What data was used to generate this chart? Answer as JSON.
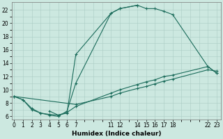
{
  "xlabel": "Humidex (Indice chaleur)",
  "bg_color": "#cce8e0",
  "line_color": "#1a6b5a",
  "grid_color": "#aaccc4",
  "xlim": [
    -0.3,
    23.5
  ],
  "ylim": [
    5.5,
    23.2
  ],
  "xtick_positions": [
    0,
    1,
    2,
    3,
    4,
    5,
    6,
    7,
    11,
    12,
    14,
    15,
    16,
    17,
    18,
    22,
    23
  ],
  "xtick_labels": [
    "0",
    "1",
    "2",
    "3",
    "4",
    "5",
    "6",
    "7",
    "11",
    "12",
    "14",
    "15",
    "16",
    "17",
    "18",
    "22",
    "23"
  ],
  "ytick_positions": [
    6,
    8,
    10,
    12,
    14,
    16,
    18,
    20,
    22
  ],
  "ytick_labels": [
    "6",
    "8",
    "10",
    "12",
    "14",
    "16",
    "18",
    "20",
    "22"
  ],
  "line1": [
    [
      0,
      9.0
    ],
    [
      1,
      8.5
    ],
    [
      2,
      7.0
    ],
    [
      3,
      6.5
    ],
    [
      4,
      6.2
    ],
    [
      5,
      6.0
    ],
    [
      6,
      6.8
    ],
    [
      7,
      11.0
    ],
    [
      11,
      21.5
    ],
    [
      12,
      22.2
    ],
    [
      14,
      22.7
    ],
    [
      15,
      22.2
    ],
    [
      16,
      22.2
    ],
    [
      17,
      21.8
    ],
    [
      18,
      21.3
    ],
    [
      22,
      13.5
    ],
    [
      23,
      12.5
    ]
  ],
  "line2": [
    [
      4,
      6.8
    ],
    [
      5,
      6.2
    ],
    [
      6,
      6.5
    ],
    [
      7,
      15.3
    ],
    [
      11,
      21.5
    ],
    [
      12,
      22.2
    ],
    [
      14,
      22.7
    ]
  ],
  "line3": [
    [
      0,
      9.0
    ],
    [
      1,
      8.5
    ],
    [
      2,
      7.2
    ],
    [
      3,
      6.5
    ],
    [
      4,
      6.3
    ],
    [
      5,
      6.2
    ],
    [
      6,
      6.6
    ],
    [
      7,
      7.5
    ],
    [
      11,
      9.5
    ],
    [
      12,
      10.0
    ],
    [
      14,
      10.8
    ],
    [
      15,
      11.2
    ],
    [
      16,
      11.5
    ],
    [
      17,
      12.0
    ],
    [
      18,
      12.2
    ],
    [
      22,
      13.5
    ],
    [
      23,
      12.5
    ]
  ],
  "line4": [
    [
      0,
      9.0
    ],
    [
      7,
      7.8
    ],
    [
      11,
      9.0
    ],
    [
      12,
      9.5
    ],
    [
      14,
      10.2
    ],
    [
      15,
      10.5
    ],
    [
      16,
      10.9
    ],
    [
      17,
      11.3
    ],
    [
      18,
      11.6
    ],
    [
      22,
      13.0
    ],
    [
      23,
      12.8
    ]
  ]
}
